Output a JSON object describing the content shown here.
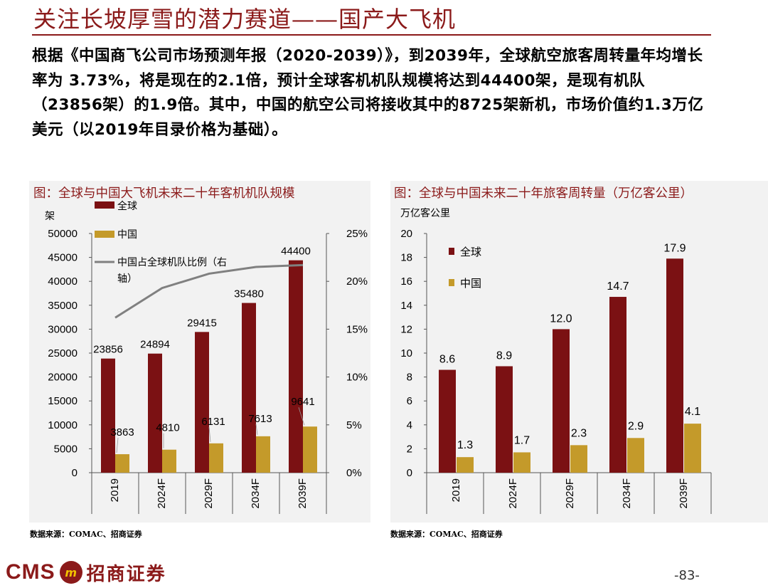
{
  "page": {
    "title": "关注长坡厚雪的潜力赛道——国产大飞机",
    "intro": "根据《中国商飞公司市场预测年报（2020-2039）》，到2039年，全球航空旅客周转量年均增长率为 3.73%，将是现在的2.1倍，预计全球客机机队规模将达到44400架，是现有机队（23856架）的1.9倍。其中，中国的航空公司将接收其中的8725架新机，市场价值约1.3万亿美元（以2019年目录价格为基础）。",
    "page_number": "-83-"
  },
  "logo": {
    "abbr": "CMS",
    "badge": "m",
    "name": "招商证券"
  },
  "colors": {
    "global": "#7b1113",
    "china": "#c49a2a",
    "ratio_line": "#808080",
    "brand": "#8b1a1a"
  },
  "chart_data": [
    {
      "type": "bar",
      "title": "图：全球与中国大飞机未来二十年客机机队规模",
      "ylabel": "架",
      "y2label": "",
      "categories": [
        "2019",
        "2024F",
        "2029F",
        "2034F",
        "2039F"
      ],
      "ylim": [
        0,
        50000
      ],
      "yticks": [
        "0",
        "5000",
        "10000",
        "15000",
        "20000",
        "25000",
        "30000",
        "35000",
        "40000",
        "45000",
        "50000"
      ],
      "y2lim": [
        0,
        25
      ],
      "y2ticks": [
        "0%",
        "5%",
        "10%",
        "15%",
        "20%",
        "25%"
      ],
      "series": [
        {
          "name": "全球",
          "values": [
            23856,
            24894,
            29415,
            35480,
            44400
          ],
          "labels": [
            "23856",
            "24894",
            "29415",
            "35480",
            "44400"
          ]
        },
        {
          "name": "中国",
          "values": [
            3863,
            4810,
            6131,
            7613,
            9641
          ],
          "labels": [
            "3863",
            "4810",
            "6131",
            "7613",
            "9641"
          ]
        },
        {
          "name": "中国占全球机队比例（右轴）",
          "type": "line",
          "axis": "right",
          "values": [
            16.2,
            19.3,
            20.8,
            21.5,
            21.7
          ]
        }
      ],
      "legend": [
        "全球",
        "中国",
        "中国占全球机队比例（右",
        "轴）"
      ],
      "source": "数据来源：COMAC、招商证券"
    },
    {
      "type": "bar",
      "title": "图：全球与中国未来二十年旅客周转量（万亿客公里）",
      "ylabel": "万亿客公里",
      "categories": [
        "2019",
        "2024F",
        "2029F",
        "2034F",
        "2039F"
      ],
      "ylim": [
        0,
        20
      ],
      "yticks": [
        "0",
        "2",
        "4",
        "6",
        "8",
        "10",
        "12",
        "14",
        "16",
        "18",
        "20"
      ],
      "series": [
        {
          "name": "全球",
          "values": [
            8.6,
            8.9,
            12.0,
            14.7,
            17.9
          ],
          "labels": [
            "8.6",
            "8.9",
            "12.0",
            "14.7",
            "17.9"
          ]
        },
        {
          "name": "中国",
          "values": [
            1.3,
            1.7,
            2.3,
            2.9,
            4.1
          ],
          "labels": [
            "1.3",
            "1.7",
            "2.3",
            "2.9",
            "4.1"
          ]
        }
      ],
      "legend": [
        "全球",
        "中国"
      ],
      "source": "数据来源：COMAC、招商证券"
    }
  ]
}
